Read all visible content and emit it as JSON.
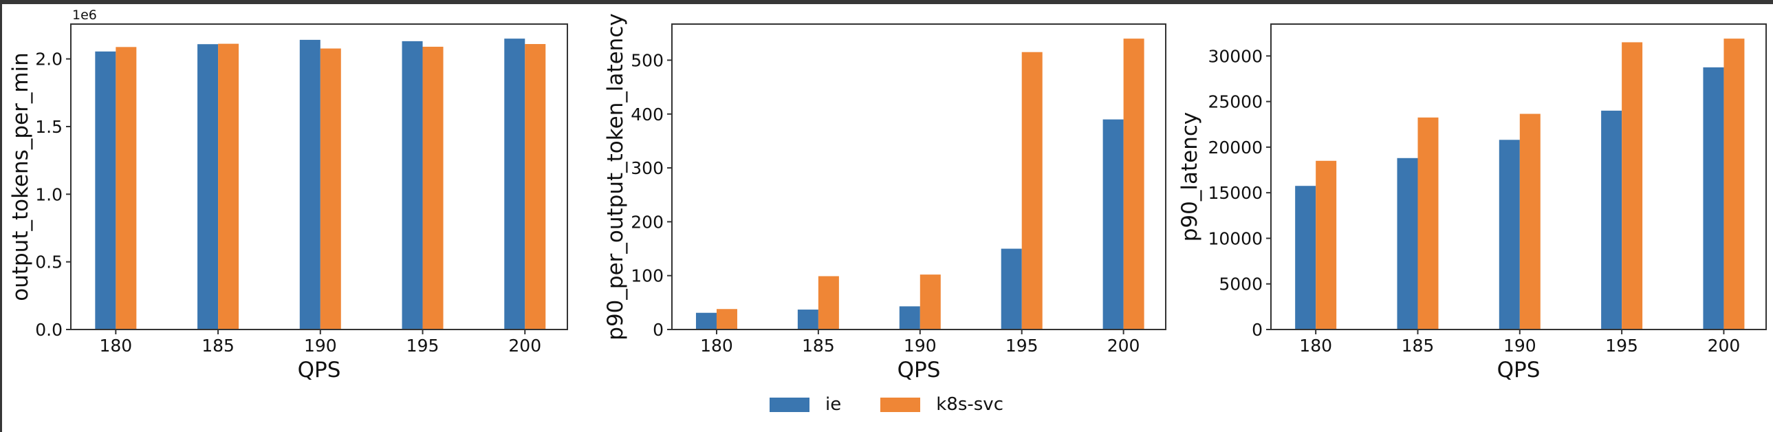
{
  "window": {
    "border_color": "#373737",
    "background": "#ffffff"
  },
  "chart_data": [
    {
      "type": "bar",
      "ylabel": "output_tokens_per_min",
      "xlabel": "QPS",
      "categories": [
        "180",
        "185",
        "190",
        "195",
        "200"
      ],
      "series": [
        {
          "name": "ie",
          "color": "#3a76b0",
          "values": [
            2055000,
            2109000,
            2141000,
            2131000,
            2150000
          ]
        },
        {
          "name": "k8s-svc",
          "color": "#ef8636",
          "values": [
            2088000,
            2112000,
            2077000,
            2090000,
            2110000
          ]
        }
      ],
      "ylim": [
        0,
        2257500
      ],
      "yticks": {
        "values": [
          0,
          500000,
          1000000,
          1500000,
          2000000
        ],
        "labels": [
          "0.0",
          "0.5",
          "1.0",
          "1.5",
          "2.0"
        ],
        "offset_label": "1e6"
      },
      "grid": false,
      "legend_position": "figure-bottom-center"
    },
    {
      "type": "bar",
      "ylabel": "p90_per_output_token_latency",
      "xlabel": "QPS",
      "categories": [
        "180",
        "185",
        "190",
        "195",
        "200"
      ],
      "series": [
        {
          "name": "ie",
          "color": "#3a76b0",
          "values": [
            31,
            37,
            43,
            150,
            390
          ]
        },
        {
          "name": "k8s-svc",
          "color": "#ef8636",
          "values": [
            38,
            99,
            102,
            515,
            540
          ]
        }
      ],
      "ylim": [
        0,
        567
      ],
      "yticks": {
        "values": [
          0,
          100,
          200,
          300,
          400,
          500
        ],
        "labels": [
          "0",
          "100",
          "200",
          "300",
          "400",
          "500"
        ],
        "offset_label": null
      },
      "grid": false,
      "legend_position": "figure-bottom-center"
    },
    {
      "type": "bar",
      "ylabel": "p90_latency",
      "xlabel": "QPS",
      "categories": [
        "180",
        "185",
        "190",
        "195",
        "200"
      ],
      "series": [
        {
          "name": "ie",
          "color": "#3a76b0",
          "values": [
            15750,
            18800,
            20800,
            24000,
            28750
          ]
        },
        {
          "name": "k8s-svc",
          "color": "#ef8636",
          "values": [
            18500,
            23250,
            23650,
            31500,
            31900
          ]
        }
      ],
      "ylim": [
        0,
        33495
      ],
      "yticks": {
        "values": [
          0,
          5000,
          10000,
          15000,
          20000,
          25000,
          30000
        ],
        "labels": [
          "0",
          "5000",
          "10000",
          "15000",
          "20000",
          "25000",
          "30000"
        ],
        "offset_label": null
      },
      "grid": false,
      "legend_position": "figure-bottom-center"
    }
  ],
  "legend": {
    "items": [
      {
        "label": "ie",
        "color": "#3a76b0"
      },
      {
        "label": "k8s-svc",
        "color": "#ef8636"
      }
    ]
  }
}
